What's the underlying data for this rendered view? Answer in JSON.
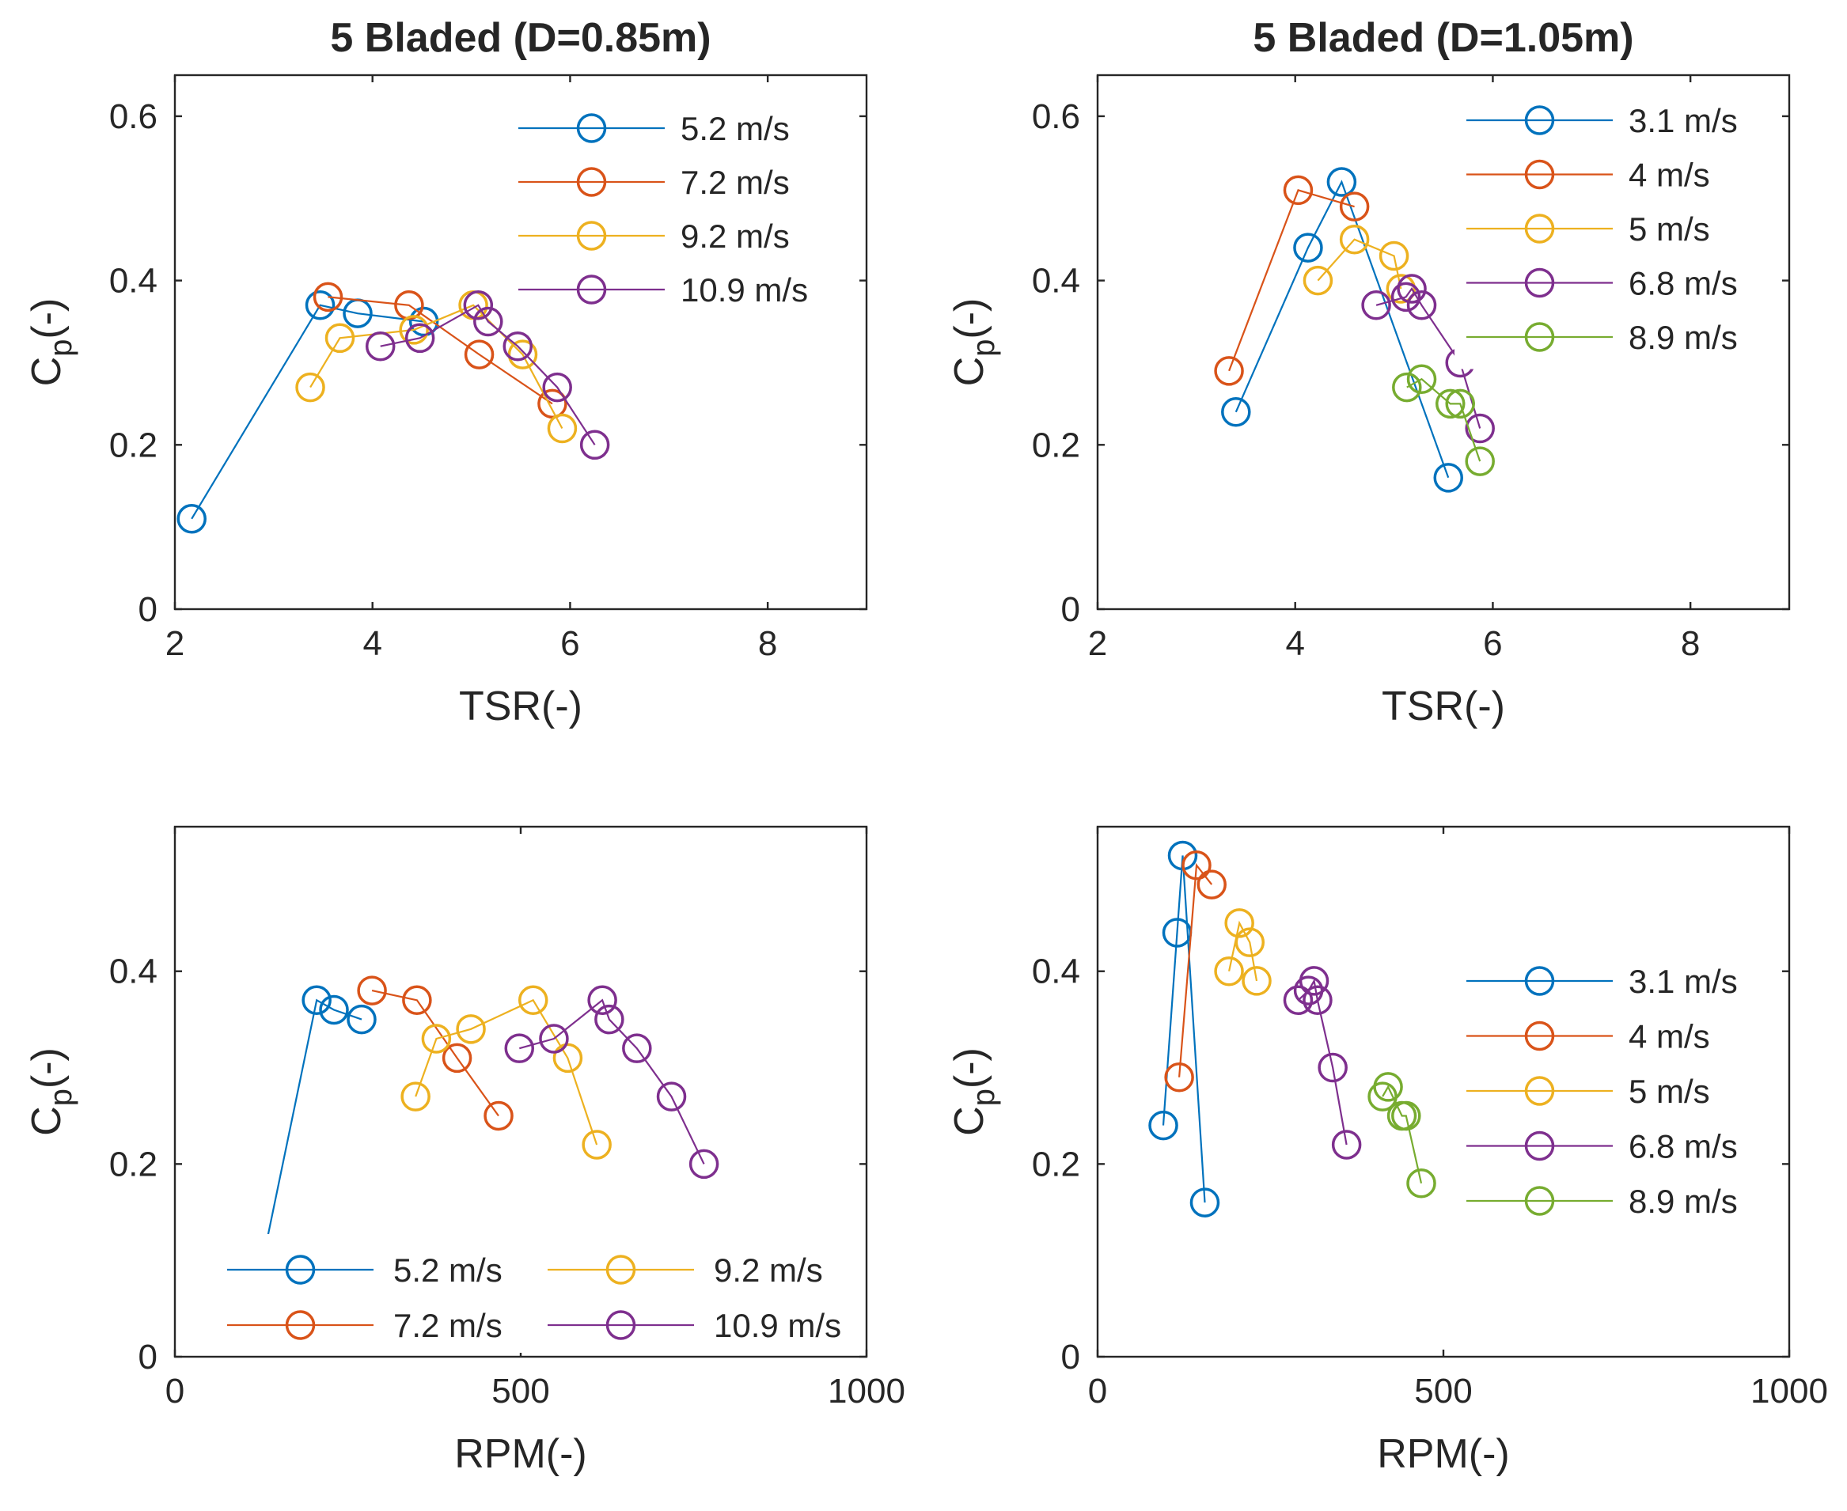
{
  "colors": {
    "series_1": "#0072BD",
    "series_2": "#D95319",
    "series_3": "#EDB120",
    "series_4": "#7E2F8E",
    "series_5": "#77AC30"
  },
  "chart_data": [
    {
      "type": "line",
      "title": "5 Bladed (D=0.85m)",
      "xlabel": "TSR(-)",
      "ylabel_main": "C",
      "ylabel_sub": "p",
      "ylabel_suffix": "(-)",
      "xlim": [
        2,
        9
      ],
      "ylim": [
        0,
        0.65
      ],
      "xticks": [
        2,
        4,
        6,
        8
      ],
      "xtick_labels": [
        "2",
        "4",
        "6",
        "8"
      ],
      "yticks": [
        0,
        0.2,
        0.4,
        0.6
      ],
      "ytick_labels": [
        "0",
        "0.2",
        "0.4",
        "0.6"
      ],
      "grid": true,
      "legend_location": "top-right",
      "series": [
        {
          "name": "5.2 m/s",
          "x": [
            2.17,
            3.47,
            3.85,
            4.52
          ],
          "y": [
            0.11,
            0.37,
            0.36,
            0.35
          ]
        },
        {
          "name": "7.2 m/s",
          "x": [
            3.55,
            4.37,
            5.08,
            5.82
          ],
          "y": [
            0.38,
            0.37,
            0.31,
            0.25
          ]
        },
        {
          "name": "9.2 m/s",
          "x": [
            3.37,
            3.67,
            4.42,
            5.02,
            5.52,
            5.92
          ],
          "y": [
            0.27,
            0.33,
            0.34,
            0.37,
            0.31,
            0.22
          ]
        },
        {
          "name": "10.9 m/s",
          "x": [
            4.08,
            4.48,
            5.07,
            5.17,
            5.47,
            5.87,
            6.25
          ],
          "y": [
            0.32,
            0.33,
            0.37,
            0.35,
            0.32,
            0.27,
            0.2
          ]
        }
      ]
    },
    {
      "type": "line",
      "title": "5 Bladed (D=1.05m)",
      "xlabel": "TSR(-)",
      "ylabel_main": "C",
      "ylabel_sub": "p",
      "ylabel_suffix": "(-)",
      "xlim": [
        2,
        9
      ],
      "ylim": [
        0,
        0.65
      ],
      "xticks": [
        2,
        4,
        6,
        8
      ],
      "xtick_labels": [
        "2",
        "4",
        "6",
        "8"
      ],
      "yticks": [
        0,
        0.2,
        0.4,
        0.6
      ],
      "ytick_labels": [
        "0",
        "0.2",
        "0.4",
        "0.6"
      ],
      "grid": true,
      "legend_location": "top-right",
      "series": [
        {
          "name": "3.1 m/s",
          "x": [
            3.4,
            4.13,
            4.47,
            5.55
          ],
          "y": [
            0.24,
            0.44,
            0.52,
            0.16
          ]
        },
        {
          "name": "4 m/s",
          "x": [
            3.33,
            4.03,
            4.6
          ],
          "y": [
            0.29,
            0.51,
            0.49
          ]
        },
        {
          "name": "5 m/s",
          "x": [
            4.23,
            4.6,
            5.0,
            5.07
          ],
          "y": [
            0.4,
            0.45,
            0.43,
            0.39
          ]
        },
        {
          "name": "6.8 m/s",
          "x": [
            4.82,
            5.12,
            5.18,
            5.28,
            5.67,
            5.87
          ],
          "y": [
            0.37,
            0.38,
            0.39,
            0.37,
            0.3,
            0.22
          ]
        },
        {
          "name": "8.9 m/s",
          "x": [
            5.13,
            5.28,
            5.57,
            5.67,
            5.87
          ],
          "y": [
            0.27,
            0.28,
            0.25,
            0.25,
            0.18
          ]
        }
      ]
    },
    {
      "type": "line",
      "title": "",
      "xlabel": "RPM(-)",
      "ylabel_main": "C",
      "ylabel_sub": "p",
      "ylabel_suffix": "(-)",
      "xlim": [
        0,
        1000
      ],
      "ylim": [
        0,
        0.55
      ],
      "xticks": [
        0,
        500,
        1000
      ],
      "xtick_labels": [
        "0",
        "500",
        "1000"
      ],
      "yticks": [
        0,
        0.2,
        0.4
      ],
      "ytick_labels": [
        "0",
        "0.2",
        "0.4"
      ],
      "grid": true,
      "legend_location": "bottom",
      "series": [
        {
          "name": "5.2 m/s",
          "x": [
            130,
            205,
            230,
            270
          ],
          "y": [
            0.11,
            0.37,
            0.36,
            0.35
          ]
        },
        {
          "name": "7.2 m/s",
          "x": [
            285,
            350,
            408,
            468
          ],
          "y": [
            0.38,
            0.37,
            0.31,
            0.25
          ]
        },
        {
          "name": "9.2 m/s",
          "x": [
            348,
            378,
            428,
            518,
            568,
            610
          ],
          "y": [
            0.27,
            0.33,
            0.34,
            0.37,
            0.31,
            0.22
          ]
        },
        {
          "name": "10.9 m/s",
          "x": [
            498,
            548,
            618,
            628,
            668,
            718,
            765
          ],
          "y": [
            0.32,
            0.33,
            0.37,
            0.35,
            0.32,
            0.27,
            0.2
          ]
        }
      ]
    },
    {
      "type": "line",
      "title": "",
      "xlabel": "RPM(-)",
      "ylabel_main": "C",
      "ylabel_sub": "p",
      "ylabel_suffix": "(-)",
      "xlim": [
        0,
        1000
      ],
      "ylim": [
        0,
        0.55
      ],
      "xticks": [
        0,
        500,
        1000
      ],
      "xtick_labels": [
        "0",
        "500",
        "1000"
      ],
      "yticks": [
        0,
        0.2,
        0.4
      ],
      "ytick_labels": [
        "0",
        "0.2",
        "0.4"
      ],
      "grid": true,
      "legend_location": "right",
      "series": [
        {
          "name": "3.1 m/s",
          "x": [
            95,
            115,
            123,
            155
          ],
          "y": [
            0.24,
            0.44,
            0.52,
            0.16
          ]
        },
        {
          "name": "4 m/s",
          "x": [
            118,
            143,
            165
          ],
          "y": [
            0.29,
            0.51,
            0.49
          ]
        },
        {
          "name": "5 m/s",
          "x": [
            190,
            205,
            220,
            230
          ],
          "y": [
            0.4,
            0.45,
            0.43,
            0.39
          ]
        },
        {
          "name": "6.8 m/s",
          "x": [
            290,
            305,
            313,
            318,
            340,
            360
          ],
          "y": [
            0.37,
            0.38,
            0.39,
            0.37,
            0.3,
            0.22
          ]
        },
        {
          "name": "8.9 m/s",
          "x": [
            412,
            420,
            440,
            446,
            468
          ],
          "y": [
            0.27,
            0.28,
            0.25,
            0.25,
            0.18
          ]
        }
      ]
    }
  ]
}
